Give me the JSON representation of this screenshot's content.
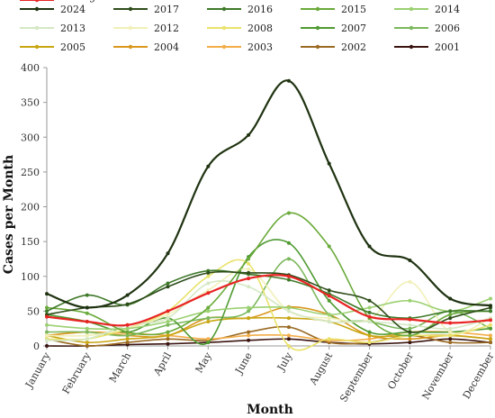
{
  "chart_data": {
    "type": "line",
    "title": "",
    "xlabel": "Month",
    "ylabel": "Cases per Month",
    "ylim": [
      0,
      400
    ],
    "yticks": [
      0,
      50,
      100,
      150,
      200,
      250,
      300,
      350,
      400
    ],
    "grid": false,
    "legend": "top",
    "categories": [
      "January",
      "February",
      "March",
      "April",
      "May",
      "June",
      "July",
      "August",
      "September",
      "October",
      "November",
      "December"
    ],
    "series": [
      {
        "name": "2024",
        "color": "#1f3311",
        "values": [
          75,
          55,
          73,
          133,
          258,
          303,
          381,
          262,
          143,
          123,
          68,
          58
        ]
      },
      {
        "name": "2017",
        "color": "#2e4d1a",
        "values": [
          45,
          55,
          60,
          85,
          105,
          105,
          102,
          80,
          65,
          20,
          40,
          55
        ]
      },
      {
        "name": "2016",
        "color": "#3f7a2a",
        "values": [
          50,
          73,
          59,
          90,
          108,
          103,
          95,
          75,
          48,
          40,
          50,
          50
        ]
      },
      {
        "name": "2015",
        "color": "#6aaa3a",
        "values": [
          55,
          47,
          20,
          20,
          55,
          125,
          191,
          143,
          40,
          15,
          45,
          50
        ]
      },
      {
        "name": "2014",
        "color": "#9bd071",
        "values": [
          30,
          25,
          25,
          35,
          50,
          55,
          55,
          45,
          55,
          65,
          50,
          68
        ]
      },
      {
        "name": "2013",
        "color": "#d5e8c4",
        "values": [
          8,
          10,
          30,
          40,
          90,
          85,
          50,
          35,
          35,
          30,
          25,
          40
        ]
      },
      {
        "name": "2012",
        "color": "#f1f0b8",
        "values": [
          15,
          15,
          25,
          45,
          80,
          110,
          50,
          40,
          38,
          92,
          20,
          40
        ]
      },
      {
        "name": "2008",
        "color": "#e9e26a",
        "values": [
          10,
          10,
          25,
          50,
          100,
          118,
          0,
          10,
          5,
          15,
          15,
          30
        ]
      },
      {
        "name": "2007",
        "color": "#4f9a31",
        "values": [
          45,
          35,
          20,
          40,
          5,
          128,
          148,
          65,
          20,
          20,
          20,
          25
        ]
      },
      {
        "name": "2006",
        "color": "#7bb85c",
        "values": [
          20,
          20,
          15,
          30,
          40,
          50,
          125,
          45,
          35,
          25,
          50,
          25
        ]
      },
      {
        "name": "2005",
        "color": "#c9a613",
        "values": [
          15,
          5,
          10,
          15,
          35,
          40,
          40,
          35,
          15,
          15,
          15,
          10
        ]
      },
      {
        "name": "2004",
        "color": "#d9971f",
        "values": [
          15,
          20,
          15,
          15,
          40,
          40,
          56,
          45,
          15,
          10,
          15,
          10
        ]
      },
      {
        "name": "2003",
        "color": "#f2ad49",
        "values": [
          15,
          20,
          18,
          15,
          10,
          15,
          15,
          8,
          10,
          20,
          20,
          15
        ]
      },
      {
        "name": "2002",
        "color": "#9a6a23",
        "values": [
          10,
          0,
          5,
          10,
          8,
          20,
          27,
          5,
          5,
          15,
          5,
          5
        ]
      },
      {
        "name": "2001",
        "color": "#3a1410",
        "values": [
          0,
          0,
          2,
          3,
          5,
          8,
          10,
          5,
          3,
          5,
          10,
          5
        ]
      },
      {
        "name": "Average",
        "color": "#e82424",
        "values": [
          42,
          35,
          30,
          50,
          76,
          97,
          100,
          72,
          42,
          38,
          33,
          37
        ]
      }
    ]
  }
}
